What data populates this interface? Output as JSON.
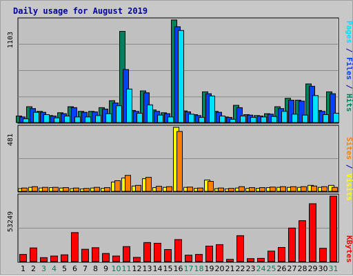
{
  "title": "Daily usage for August 2019",
  "colors": {
    "title": "#0000a0",
    "hits": "#00805c",
    "files": "#0040ff",
    "pages": "#00e0ff",
    "visits": "#ffff00",
    "sites": "#ff8000",
    "kbytes": "#ff0000",
    "weekend": "#00805c",
    "plot_bg": "#c0c0c0",
    "frame_bg": "#c8c8c8"
  },
  "chart_data": [
    {
      "type": "bar",
      "panel": "hits-files-pages",
      "ylabel_max": "1103",
      "ylim": [
        0,
        1103
      ],
      "grid": true,
      "categories": [
        "1",
        "2",
        "3",
        "4",
        "5",
        "6",
        "7",
        "8",
        "9",
        "10",
        "11",
        "12",
        "13",
        "14",
        "15",
        "16",
        "17",
        "18",
        "19",
        "20",
        "21",
        "22",
        "23",
        "24",
        "25",
        "26",
        "27",
        "28",
        "29",
        "30",
        "31"
      ],
      "legend": [
        "Pages",
        "Files",
        "Hits"
      ],
      "series": [
        {
          "name": "Hits",
          "values": [
            70,
            170,
            120,
            75,
            105,
            170,
            120,
            120,
            160,
            235,
            980,
            130,
            340,
            135,
            105,
            1103,
            125,
            85,
            330,
            120,
            60,
            185,
            85,
            75,
            95,
            170,
            260,
            240,
            415,
            130,
            330
          ]
        },
        {
          "name": "Files",
          "values": [
            60,
            150,
            110,
            70,
            95,
            160,
            110,
            115,
            145,
            210,
            570,
            120,
            320,
            120,
            95,
            1030,
            115,
            75,
            310,
            110,
            55,
            160,
            80,
            70,
            90,
            150,
            240,
            230,
            390,
            120,
            310
          ]
        },
        {
          "name": "Pages",
          "values": [
            40,
            110,
            85,
            50,
            70,
            60,
            60,
            75,
            95,
            180,
            360,
            100,
            190,
            80,
            60,
            990,
            90,
            55,
            285,
            70,
            35,
            70,
            55,
            60,
            65,
            120,
            90,
            80,
            290,
            85,
            100
          ]
        }
      ]
    },
    {
      "type": "bar",
      "panel": "visits-sites",
      "ylabel_max": "481",
      "ylim": [
        0,
        481
      ],
      "grid": true,
      "categories": [
        "1",
        "2",
        "3",
        "4",
        "5",
        "6",
        "7",
        "8",
        "9",
        "10",
        "11",
        "12",
        "13",
        "14",
        "15",
        "16",
        "17",
        "18",
        "19",
        "20",
        "21",
        "22",
        "23",
        "24",
        "25",
        "26",
        "27",
        "28",
        "29",
        "30",
        "31"
      ],
      "legend": [
        "Sites",
        "Visits"
      ],
      "series": [
        {
          "name": "Visits",
          "values": [
            20,
            30,
            25,
            28,
            25,
            20,
            18,
            25,
            22,
            70,
            100,
            40,
            95,
            28,
            30,
            481,
            30,
            22,
            85,
            20,
            18,
            25,
            22,
            22,
            28,
            30,
            30,
            30,
            45,
            30,
            45
          ]
        },
        {
          "name": "Sites",
          "values": [
            25,
            35,
            30,
            30,
            28,
            25,
            22,
            30,
            28,
            80,
            120,
            45,
            105,
            38,
            35,
            450,
            32,
            25,
            75,
            25,
            22,
            35,
            28,
            28,
            32,
            35,
            35,
            35,
            40,
            35,
            30
          ]
        }
      ]
    },
    {
      "type": "bar",
      "panel": "kbytes",
      "ylabel_max": "53249",
      "ylim": [
        0,
        53249
      ],
      "grid": true,
      "categories": [
        "1",
        "2",
        "3",
        "4",
        "5",
        "6",
        "7",
        "8",
        "9",
        "10",
        "11",
        "12",
        "13",
        "14",
        "15",
        "16",
        "17",
        "18",
        "19",
        "20",
        "21",
        "22",
        "23",
        "24",
        "25",
        "26",
        "27",
        "28",
        "29",
        "30",
        "31"
      ],
      "legend": [
        "KBytes"
      ],
      "series": [
        {
          "name": "KBytes",
          "values": [
            5800,
            11100,
            3200,
            4500,
            5500,
            23600,
            10000,
            11300,
            6600,
            4500,
            12200,
            3400,
            15500,
            14900,
            9800,
            17900,
            5200,
            5800,
            12600,
            13800,
            1800,
            21100,
            2400,
            2600,
            8500,
            11500,
            27300,
            33300,
            47100,
            10800,
            53249
          ]
        }
      ]
    }
  ],
  "days": [
    {
      "label": "1",
      "weekend": false
    },
    {
      "label": "2",
      "weekend": false
    },
    {
      "label": "3",
      "weekend": true
    },
    {
      "label": "4",
      "weekend": true
    },
    {
      "label": "5",
      "weekend": false
    },
    {
      "label": "6",
      "weekend": false
    },
    {
      "label": "7",
      "weekend": false
    },
    {
      "label": "8",
      "weekend": false
    },
    {
      "label": "9",
      "weekend": false
    },
    {
      "label": "10",
      "weekend": true
    },
    {
      "label": "11",
      "weekend": true
    },
    {
      "label": "12",
      "weekend": false
    },
    {
      "label": "13",
      "weekend": false
    },
    {
      "label": "14",
      "weekend": false
    },
    {
      "label": "15",
      "weekend": false
    },
    {
      "label": "16",
      "weekend": false
    },
    {
      "label": "17",
      "weekend": true
    },
    {
      "label": "18",
      "weekend": true
    },
    {
      "label": "19",
      "weekend": false
    },
    {
      "label": "20",
      "weekend": false
    },
    {
      "label": "21",
      "weekend": false
    },
    {
      "label": "22",
      "weekend": false
    },
    {
      "label": "23",
      "weekend": false
    },
    {
      "label": "24",
      "weekend": true
    },
    {
      "label": "25",
      "weekend": true
    },
    {
      "label": "26",
      "weekend": false
    },
    {
      "label": "27",
      "weekend": false
    },
    {
      "label": "28",
      "weekend": false
    },
    {
      "label": "29",
      "weekend": false
    },
    {
      "label": "30",
      "weekend": false
    },
    {
      "label": "31",
      "weekend": true
    }
  ],
  "right_labels": {
    "top": [
      {
        "text": "Pages",
        "color_key": "pages"
      },
      {
        "text": " / ",
        "color_key": "title"
      },
      {
        "text": "Files",
        "color_key": "files"
      },
      {
        "text": " / ",
        "color_key": "title"
      },
      {
        "text": "Hits",
        "color_key": "hits"
      }
    ],
    "middle": [
      {
        "text": "Sites",
        "color_key": "sites"
      },
      {
        "text": " / ",
        "color_key": "title"
      },
      {
        "text": "Visits",
        "color_key": "visits"
      }
    ],
    "bottom": [
      {
        "text": "KBytes",
        "color_key": "kbytes"
      }
    ]
  }
}
